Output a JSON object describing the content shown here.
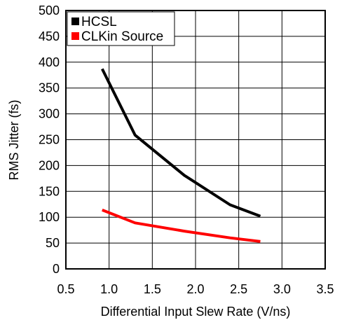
{
  "chart_data": {
    "type": "line",
    "title": "",
    "xlabel": "Differential Input Slew Rate (V/ns)",
    "ylabel": "RMS Jitter (fs)",
    "xlim": [
      0.5,
      3.5
    ],
    "ylim": [
      0,
      500
    ],
    "xticks": [
      "0.5",
      "1.0",
      "1.5",
      "2.0",
      "2.5",
      "3.0",
      "3.5"
    ],
    "yticks": [
      "0",
      "50",
      "100",
      "150",
      "200",
      "250",
      "300",
      "350",
      "400",
      "450",
      "500"
    ],
    "grid": true,
    "legend_position": "top-left",
    "series": [
      {
        "name": "HCSL",
        "color": "#000000",
        "x": [
          0.92,
          1.3,
          1.87,
          2.4,
          2.75
        ],
        "y": [
          387,
          259,
          181,
          124,
          102
        ]
      },
      {
        "name": "CLKin Source",
        "color": "#ff0000",
        "x": [
          0.92,
          1.3,
          1.87,
          2.4,
          2.75
        ],
        "y": [
          114,
          89,
          73,
          60,
          53
        ]
      }
    ]
  }
}
